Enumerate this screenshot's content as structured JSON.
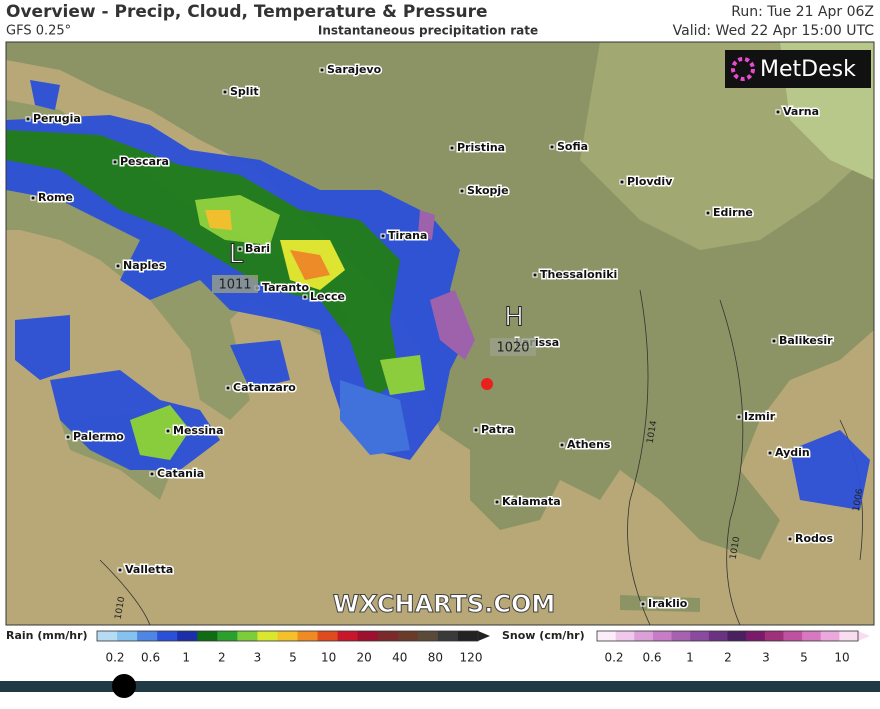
{
  "header": {
    "title": "Overview - Precip, Cloud, Temperature & Pressure",
    "model": "GFS 0.25°",
    "subtitle": "Instantaneous precipitation rate",
    "run": "Run: Tue 21 Apr 06Z",
    "valid": "Valid: Wed 22 Apr 15:00 UTC"
  },
  "logo": "MetDesk",
  "watermark": "WXCHARTS.COM",
  "cities": [
    "Sarajevo",
    "Split",
    "Perugia",
    "Pescara",
    "Rome",
    "Bari",
    "Naples",
    "Taranto",
    "Lecce",
    "Catanzaro",
    "Palermo",
    "Messina",
    "Catania",
    "Valletta",
    "Tirana",
    "Pristina",
    "Skopje",
    "Sofia",
    "Plovdiv",
    "Edirne",
    "Varna",
    "Thessaloniki",
    "Larissa",
    "Patra",
    "Athens",
    "Kalamata",
    "Iraklio",
    "Balikesir",
    "Izmir",
    "Aydin",
    "Rodos"
  ],
  "pressure_centers": [
    {
      "label": "L",
      "value": 1011
    },
    {
      "label": "H",
      "value": 1020
    }
  ],
  "isobar_labels": [
    1014,
    1010,
    1006,
    1010
  ],
  "legend": {
    "rain": {
      "title": "Rain (mm/hr)",
      "ticks": [
        0.2,
        0.6,
        1,
        2,
        3,
        5,
        10,
        20,
        40,
        80,
        120
      ]
    },
    "snow": {
      "title": "Snow (cm/hr)",
      "ticks": [
        0.2,
        0.6,
        1,
        2,
        3,
        5,
        10
      ]
    }
  }
}
